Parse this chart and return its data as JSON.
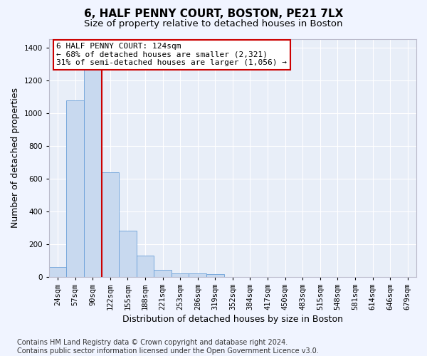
{
  "title1": "6, HALF PENNY COURT, BOSTON, PE21 7LX",
  "title2": "Size of property relative to detached houses in Boston",
  "xlabel": "Distribution of detached houses by size in Boston",
  "ylabel": "Number of detached properties",
  "footnote": "Contains HM Land Registry data © Crown copyright and database right 2024.\nContains public sector information licensed under the Open Government Licence v3.0.",
  "categories": [
    "24sqm",
    "57sqm",
    "90sqm",
    "122sqm",
    "155sqm",
    "188sqm",
    "221sqm",
    "253sqm",
    "286sqm",
    "319sqm",
    "352sqm",
    "384sqm",
    "417sqm",
    "450sqm",
    "483sqm",
    "515sqm",
    "548sqm",
    "581sqm",
    "614sqm",
    "646sqm",
    "679sqm"
  ],
  "values": [
    60,
    1075,
    1310,
    635,
    280,
    130,
    40,
    20,
    18,
    15,
    0,
    0,
    0,
    0,
    0,
    0,
    0,
    0,
    0,
    0,
    0
  ],
  "bar_color": "#c8d9ef",
  "bar_edge_color": "#6a9fd8",
  "annotation_text": "6 HALF PENNY COURT: 124sqm\n← 68% of detached houses are smaller (2,321)\n31% of semi-detached houses are larger (1,056) →",
  "annotation_box_color": "#ffffff",
  "annotation_box_edge": "#cc0000",
  "vline_color": "#cc0000",
  "vline_x": 2.5,
  "ylim": [
    0,
    1450
  ],
  "yticks": [
    0,
    200,
    400,
    600,
    800,
    1000,
    1200,
    1400
  ],
  "bg_color": "#f0f4ff",
  "plot_bg_color": "#e8eef8",
  "grid_color": "#ffffff",
  "title1_fontsize": 11,
  "title2_fontsize": 9.5,
  "xlabel_fontsize": 9,
  "ylabel_fontsize": 9,
  "annotation_fontsize": 8,
  "tick_fontsize": 7.5,
  "footnote_fontsize": 7
}
